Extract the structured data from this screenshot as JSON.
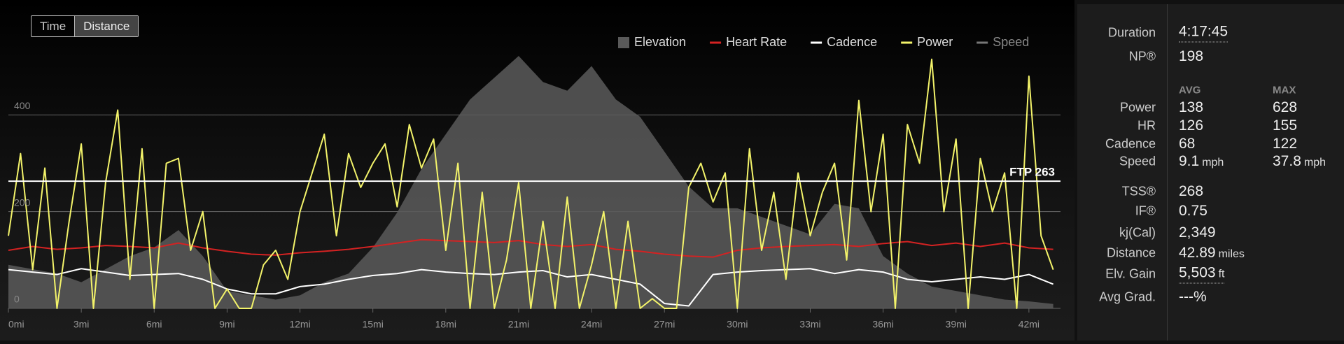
{
  "toggle": {
    "options": [
      "Time",
      "Distance"
    ],
    "selected": "Distance"
  },
  "chart_data": {
    "type": "line",
    "legend": "top-right",
    "xlim": [
      0,
      43.3
    ],
    "xticks": [
      {
        "value": 0,
        "label": "0mi"
      },
      {
        "value": 3,
        "label": "3mi"
      },
      {
        "value": 6,
        "label": "6mi"
      },
      {
        "value": 9,
        "label": "9mi"
      },
      {
        "value": 12,
        "label": "12mi"
      },
      {
        "value": 15,
        "label": "15mi"
      },
      {
        "value": 18,
        "label": "18mi"
      },
      {
        "value": 21,
        "label": "21mi"
      },
      {
        "value": 24,
        "label": "24mi"
      },
      {
        "value": 27,
        "label": "27mi"
      },
      {
        "value": 30,
        "label": "30mi"
      },
      {
        "value": 33,
        "label": "33mi"
      },
      {
        "value": 36,
        "label": "36mi"
      },
      {
        "value": 39,
        "label": "39mi"
      },
      {
        "value": 42,
        "label": "42mi"
      }
    ],
    "ylim": [
      0,
      600
    ],
    "yticks": [
      0,
      200,
      400
    ],
    "y2lim": [
      0,
      2000
    ],
    "grid": true,
    "ftp": {
      "label": "FTP 263",
      "value": 263
    },
    "series": [
      {
        "name": "Elevation",
        "color": "#5a5a5a",
        "style": "area",
        "axis": "y2",
        "visible": true,
        "x": [
          0,
          1,
          2,
          3,
          4,
          5,
          6,
          7,
          8,
          9,
          10,
          11,
          12,
          13,
          14,
          15,
          16,
          17,
          18,
          19,
          20,
          21,
          22,
          23,
          24,
          25,
          26,
          27,
          28,
          29,
          30,
          31,
          32,
          33,
          34,
          35,
          36,
          37,
          38,
          39,
          40,
          41,
          42,
          43
        ],
        "values": [
          300,
          270,
          240,
          180,
          270,
          360,
          420,
          540,
          360,
          120,
          90,
          60,
          90,
          180,
          240,
          420,
          660,
          960,
          1200,
          1440,
          1590,
          1740,
          1560,
          1500,
          1670,
          1440,
          1320,
          1080,
          840,
          690,
          690,
          630,
          570,
          510,
          720,
          690,
          360,
          240,
          150,
          120,
          90,
          60,
          48,
          30
        ]
      },
      {
        "name": "Heart Rate",
        "color": "#d42222",
        "style": "line",
        "visible": true,
        "x": [
          0,
          1,
          2,
          3,
          4,
          5,
          6,
          7,
          8,
          9,
          10,
          11,
          12,
          13,
          14,
          15,
          16,
          17,
          18,
          19,
          20,
          21,
          22,
          23,
          24,
          25,
          26,
          27,
          28,
          29,
          30,
          31,
          32,
          33,
          34,
          35,
          36,
          37,
          38,
          39,
          40,
          41,
          42,
          43
        ],
        "values": [
          120,
          128,
          122,
          125,
          130,
          128,
          125,
          135,
          125,
          118,
          112,
          110,
          115,
          118,
          122,
          128,
          135,
          142,
          140,
          138,
          136,
          140,
          132,
          128,
          132,
          122,
          118,
          112,
          108,
          106,
          120,
          125,
          128,
          130,
          132,
          128,
          134,
          138,
          130,
          135,
          128,
          135,
          125,
          122
        ]
      },
      {
        "name": "Cadence",
        "color": "#ffffff",
        "style": "line",
        "visible": true,
        "x": [
          0,
          1,
          2,
          3,
          4,
          5,
          6,
          7,
          8,
          9,
          10,
          11,
          12,
          13,
          14,
          15,
          16,
          17,
          18,
          19,
          20,
          21,
          22,
          23,
          24,
          25,
          26,
          27,
          28,
          29,
          30,
          31,
          32,
          33,
          34,
          35,
          36,
          37,
          38,
          39,
          40,
          41,
          42,
          43
        ],
        "values": [
          80,
          75,
          70,
          82,
          75,
          68,
          70,
          72,
          60,
          40,
          30,
          30,
          45,
          50,
          60,
          68,
          72,
          80,
          75,
          72,
          70,
          75,
          78,
          65,
          70,
          60,
          50,
          10,
          5,
          70,
          75,
          78,
          80,
          82,
          72,
          80,
          75,
          60,
          55,
          60,
          65,
          60,
          70,
          50
        ]
      },
      {
        "name": "Power",
        "color": "#f3f36a",
        "style": "line",
        "visible": true,
        "x": [
          0,
          0.5,
          1,
          1.5,
          2,
          2.5,
          3,
          3.5,
          4,
          4.5,
          5,
          5.5,
          6,
          6.5,
          7,
          7.5,
          8,
          8.5,
          9,
          9.5,
          10,
          10.5,
          11,
          11.5,
          12,
          12.5,
          13,
          13.5,
          14,
          14.5,
          15,
          15.5,
          16,
          16.5,
          17,
          17.5,
          18,
          18.5,
          19,
          19.5,
          20,
          20.5,
          21,
          21.5,
          22,
          22.5,
          23,
          23.5,
          24,
          24.5,
          25,
          25.5,
          26,
          26.5,
          27,
          27.5,
          28,
          28.5,
          29,
          29.5,
          30,
          30.5,
          31,
          31.5,
          32,
          32.5,
          33,
          33.5,
          34,
          34.5,
          35,
          35.5,
          36,
          36.5,
          37,
          37.5,
          38,
          38.5,
          39,
          39.5,
          40,
          40.5,
          41,
          41.5,
          42,
          42.5,
          43
        ],
        "values": [
          150,
          320,
          80,
          290,
          0,
          180,
          340,
          0,
          260,
          410,
          60,
          330,
          0,
          300,
          310,
          120,
          200,
          0,
          40,
          0,
          0,
          90,
          120,
          60,
          200,
          280,
          360,
          150,
          320,
          250,
          300,
          340,
          210,
          380,
          290,
          350,
          120,
          300,
          0,
          240,
          0,
          100,
          260,
          0,
          180,
          0,
          230,
          0,
          90,
          200,
          0,
          180,
          0,
          20,
          0,
          0,
          250,
          300,
          220,
          280,
          0,
          330,
          120,
          240,
          60,
          280,
          150,
          240,
          300,
          100,
          430,
          200,
          360,
          0,
          380,
          300,
          515,
          200,
          350,
          0,
          310,
          200,
          280,
          0,
          480,
          150,
          80
        ]
      },
      {
        "name": "Speed",
        "color": "#777777",
        "style": "line",
        "visible": false
      }
    ]
  },
  "stats": {
    "top": [
      {
        "label": "Duration",
        "value": "4:17:45"
      },
      {
        "label": "NP®",
        "value": "198"
      }
    ],
    "columns": [
      "AVG",
      "MAX"
    ],
    "metrics": [
      {
        "label": "Power",
        "avg": "138",
        "max": "628"
      },
      {
        "label": "HR",
        "avg": "126",
        "max": "155"
      },
      {
        "label": "Cadence",
        "avg": "68",
        "max": "122"
      },
      {
        "label": "Speed",
        "avg": "9.1",
        "max": "37.8",
        "unit": "mph"
      }
    ],
    "totals": [
      {
        "label": "TSS®",
        "value": "268"
      },
      {
        "label": "IF®",
        "value": "0.75"
      },
      {
        "label": "kj(Cal)",
        "value": "2,349"
      },
      {
        "label": "Distance",
        "value": "42.89",
        "unit": "miles"
      },
      {
        "label": "Elv. Gain",
        "value": "5,503",
        "unit": "ft"
      },
      {
        "label": "Avg Grad.",
        "value": "---%"
      }
    ]
  }
}
